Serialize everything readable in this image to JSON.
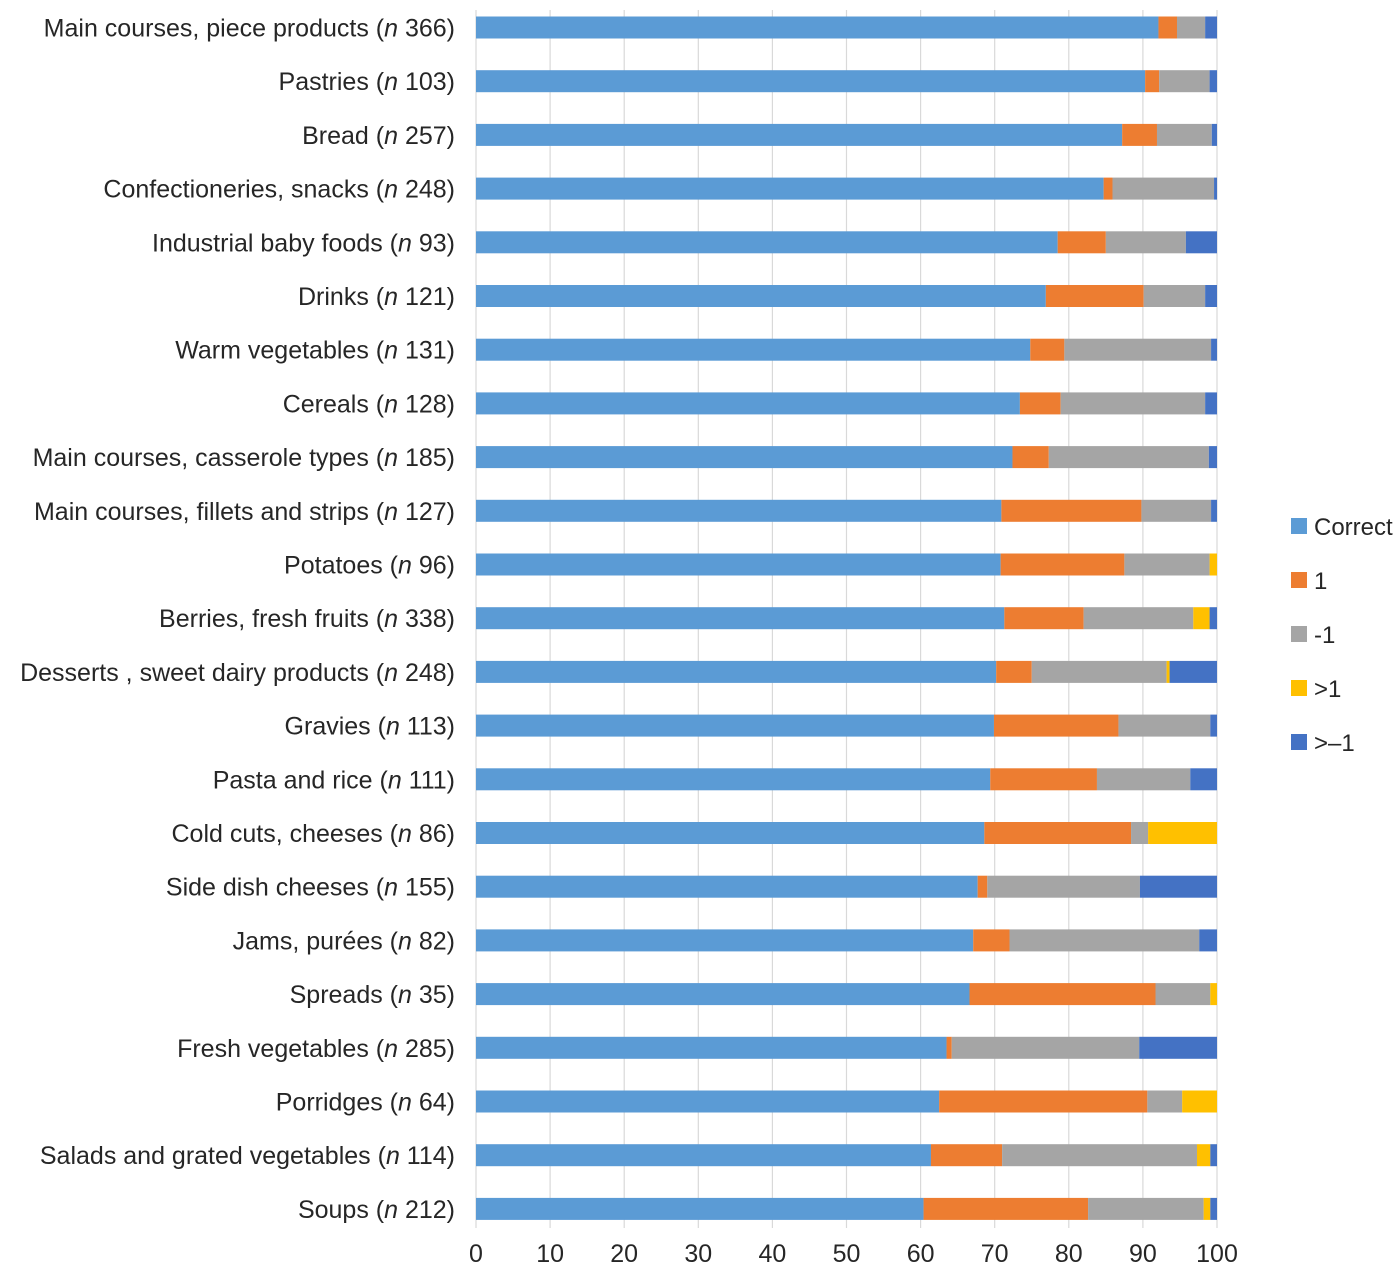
{
  "chart_data": {
    "type": "bar",
    "orientation": "horizontal",
    "stacked": true,
    "title": "",
    "xlabel": "",
    "ylabel": "",
    "xlim": [
      0,
      100
    ],
    "xticks": [
      0,
      10,
      20,
      30,
      40,
      50,
      60,
      70,
      80,
      90,
      100
    ],
    "grid": "vertical",
    "legend_position": "right",
    "categories": [
      "Main courses, piece products (n 366)",
      "Pastries (n 103)",
      "Bread (n 257)",
      "Confectioneries, snacks (n 248)",
      "Industrial baby foods (n 93)",
      "Drinks (n 121)",
      "Warm vegetables (n 131)",
      "Cereals (n 128)",
      "Main courses, casserole types (n 185)",
      "Main courses, fillets and strips (n 127)",
      "Potatoes (n 96)",
      "Berries, fresh fruits (n 338)",
      "Desserts , sweet dairy products (n 248)",
      "Gravies (n 113)",
      "Pasta and rice (n 111)",
      "Cold cuts, cheeses (n 86)",
      "Side dish cheeses (n 155)",
      "Jams, purées (n 82)",
      "Spreads (n 35)",
      "Fresh vegetables (n 285)",
      "Porridges (n 64)",
      "Salads and grated vegetables (n 114)",
      "Soups (n 212)"
    ],
    "category_parts": [
      {
        "pre": "Main courses, piece products (",
        "n": "n",
        "post": " 366)"
      },
      {
        "pre": "Pastries (",
        "n": "n",
        "post": " 103)"
      },
      {
        "pre": "Bread (",
        "n": "n",
        "post": " 257)"
      },
      {
        "pre": "Confectioneries, snacks (",
        "n": "n",
        "post": " 248)"
      },
      {
        "pre": "Industrial baby foods (",
        "n": "n",
        "post": " 93)"
      },
      {
        "pre": "Drinks (",
        "n": "n",
        "post": " 121)"
      },
      {
        "pre": "Warm vegetables (",
        "n": "n",
        "post": " 131)"
      },
      {
        "pre": "Cereals (",
        "n": "n",
        "post": " 128)"
      },
      {
        "pre": "Main courses, casserole types (",
        "n": "n",
        "post": " 185)"
      },
      {
        "pre": "Main courses, fillets and strips (",
        "n": "n",
        "post": " 127)"
      },
      {
        "pre": "Potatoes (",
        "n": "n",
        "post": " 96)"
      },
      {
        "pre": "Berries, fresh fruits (",
        "n": "n",
        "post": " 338)"
      },
      {
        "pre": "Desserts , sweet dairy products (",
        "n": "n",
        "post": " 248)"
      },
      {
        "pre": "Gravies (",
        "n": "n",
        "post": " 113)"
      },
      {
        "pre": "Pasta and rice (",
        "n": "n",
        "post": " 111)"
      },
      {
        "pre": "Cold cuts, cheeses (",
        "n": "n",
        "post": " 86)"
      },
      {
        "pre": "Side dish cheeses (",
        "n": "n",
        "post": " 155)"
      },
      {
        "pre": "Jams, purées (",
        "n": "n",
        "post": " 82)"
      },
      {
        "pre": "Spreads (",
        "n": "n",
        "post": " 35)"
      },
      {
        "pre": "Fresh vegetables (",
        "n": "n",
        "post": " 285)"
      },
      {
        "pre": "Porridges (",
        "n": "n",
        "post": " 64)"
      },
      {
        "pre": "Salads and grated vegetables (",
        "n": "n",
        "post": " 114)"
      },
      {
        "pre": "Soups (",
        "n": "n",
        "post": " 212)"
      }
    ],
    "series": [
      {
        "name": "Correct",
        "color": "#5B9BD5",
        "values": [
          92.1,
          90.3,
          87.2,
          84.7,
          78.5,
          76.9,
          74.8,
          73.4,
          72.4,
          70.9,
          70.8,
          71.3,
          70.2,
          69.9,
          69.4,
          68.6,
          67.7,
          67.1,
          66.6,
          63.5,
          62.5,
          61.4,
          60.4
        ]
      },
      {
        "name": "1",
        "color": "#ED7D31",
        "values": [
          2.5,
          1.9,
          4.7,
          1.2,
          6.5,
          13.2,
          4.6,
          5.5,
          4.9,
          18.9,
          16.7,
          10.7,
          4.8,
          16.8,
          14.4,
          19.8,
          1.3,
          4.9,
          25.1,
          0.7,
          28.1,
          9.6,
          22.2
        ]
      },
      {
        "name": "-1",
        "color": "#A5A5A5",
        "values": [
          3.8,
          6.8,
          7.4,
          13.7,
          10.8,
          8.3,
          19.8,
          19.5,
          21.6,
          9.4,
          11.5,
          14.8,
          18.2,
          12.4,
          12.6,
          2.3,
          20.6,
          25.6,
          7.4,
          25.3,
          4.7,
          26.3,
          15.6
        ]
      },
      {
        "name": ">1",
        "color": "#FFC000",
        "values": [
          0,
          0,
          0,
          0,
          0,
          0,
          0,
          0,
          0,
          0,
          1.0,
          2.2,
          0.4,
          0,
          0,
          9.3,
          0,
          0,
          0.9,
          0,
          4.7,
          1.8,
          0.9
        ]
      },
      {
        "name": ">–1",
        "color": "#4472C4",
        "values": [
          1.6,
          1.0,
          0.7,
          0.4,
          4.2,
          1.6,
          0.8,
          1.6,
          1.1,
          0.8,
          0,
          1.0,
          6.4,
          0.9,
          3.6,
          0,
          10.4,
          2.4,
          0,
          10.5,
          0,
          0.9,
          0.9
        ]
      }
    ]
  }
}
